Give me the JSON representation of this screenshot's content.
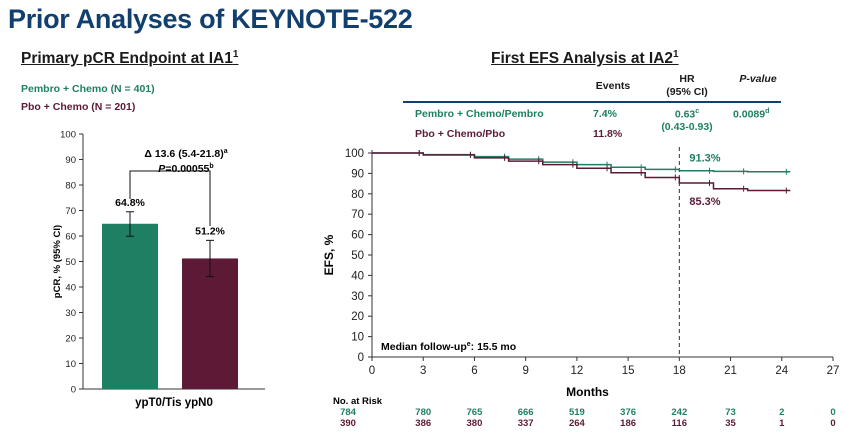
{
  "title": "Prior Analyses of KEYNOTE-522",
  "colors": {
    "pembro": "#1e7f63",
    "pbo": "#5c1a37",
    "title": "#12406e"
  },
  "left": {
    "heading": "Primary pCR Endpoint at IA1",
    "heading_sup": "1",
    "legend": [
      {
        "label": "Pembro + Chemo (N = 401)",
        "color": "#1e7f63"
      },
      {
        "label": "Pbo + Chemo (N = 201)",
        "color": "#5c1a37"
      }
    ],
    "delta": "Δ 13.6 (5.4-21.8)",
    "delta_sup": "a",
    "p_label": "P",
    "p_value": "=0.00055",
    "p_sup": "b"
  },
  "right": {
    "heading": "First EFS Analysis at IA2",
    "heading_sup": "1",
    "table": {
      "headers": {
        "events": "Events",
        "hr": "HR",
        "hr_ci": "(95% CI)",
        "p": "P-value"
      },
      "rows": [
        {
          "label": "Pembro + Chemo/Pembro",
          "events": "7.4%",
          "hr": "0.63",
          "hr_sup": "c",
          "ci": "(0.43-0.93)",
          "p": "0.0089",
          "p_sup": "d"
        },
        {
          "label": "Pbo + Chemo/Pbo",
          "events": "11.8%"
        }
      ]
    },
    "median_followup": "Median follow-up",
    "median_followup_sup": "e",
    "median_followup_value": ": 15.5 mo"
  },
  "chart_data": [
    {
      "type": "bar",
      "categories": [
        "ypT0/Tis ypN0"
      ],
      "series": [
        {
          "name": "Pembro + Chemo (N = 401)",
          "values": [
            64.8
          ],
          "ci": [
            [
              59.9,
              69.5
            ]
          ],
          "label": "64.8%"
        },
        {
          "name": "Pbo + Chemo (N = 201)",
          "values": [
            51.2
          ],
          "ci": [
            [
              44.1,
              58.3
            ]
          ],
          "label": "51.2%"
        }
      ],
      "xlabel": "ypT0/Tis ypN0",
      "ylabel": "pCR, % (95% CI)",
      "ylim": [
        0,
        100
      ],
      "yticks": [
        0,
        10,
        20,
        30,
        40,
        50,
        60,
        70,
        80,
        90,
        100
      ]
    },
    {
      "type": "line",
      "xlabel": "Months",
      "ylabel": "EFS, %",
      "xlim": [
        0,
        27
      ],
      "ylim": [
        0,
        100
      ],
      "xticks": [
        0,
        3,
        6,
        9,
        12,
        15,
        18,
        21,
        24,
        27
      ],
      "yticks": [
        0,
        10,
        20,
        30,
        40,
        50,
        60,
        70,
        80,
        90,
        100
      ],
      "reference_x": 18,
      "series": [
        {
          "name": "Pembro + Chemo/Pembro",
          "x": [
            0,
            3,
            6,
            8,
            10,
            12,
            14,
            16,
            18,
            20,
            22,
            24.5
          ],
          "y": [
            100,
            99.2,
            98.2,
            97,
            95.5,
            94.3,
            93,
            92,
            91.3,
            91.0,
            90.8,
            90.8
          ],
          "end_label": "91.3%"
        },
        {
          "name": "Pbo + Chemo/Pbo",
          "x": [
            0,
            3,
            6,
            8,
            10,
            12,
            14,
            16,
            18,
            20,
            22,
            24.5
          ],
          "y": [
            100,
            99,
            97.6,
            96,
            94.3,
            92.5,
            90.3,
            88,
            85.3,
            82.5,
            81.6,
            81.6
          ],
          "end_label": "85.3%"
        }
      ],
      "risk_table": {
        "title": "No. at Risk",
        "rows": [
          {
            "series": "Pembro + Chemo/Pembro",
            "values": [
              "784",
              "780",
              "765",
              "666",
              "519",
              "376",
              "242",
              "73",
              "2",
              "0"
            ]
          },
          {
            "series": "Pbo + Chemo/Pbo",
            "values": [
              "390",
              "386",
              "380",
              "337",
              "264",
              "186",
              "116",
              "35",
              "1",
              "0"
            ]
          }
        ]
      }
    }
  ]
}
